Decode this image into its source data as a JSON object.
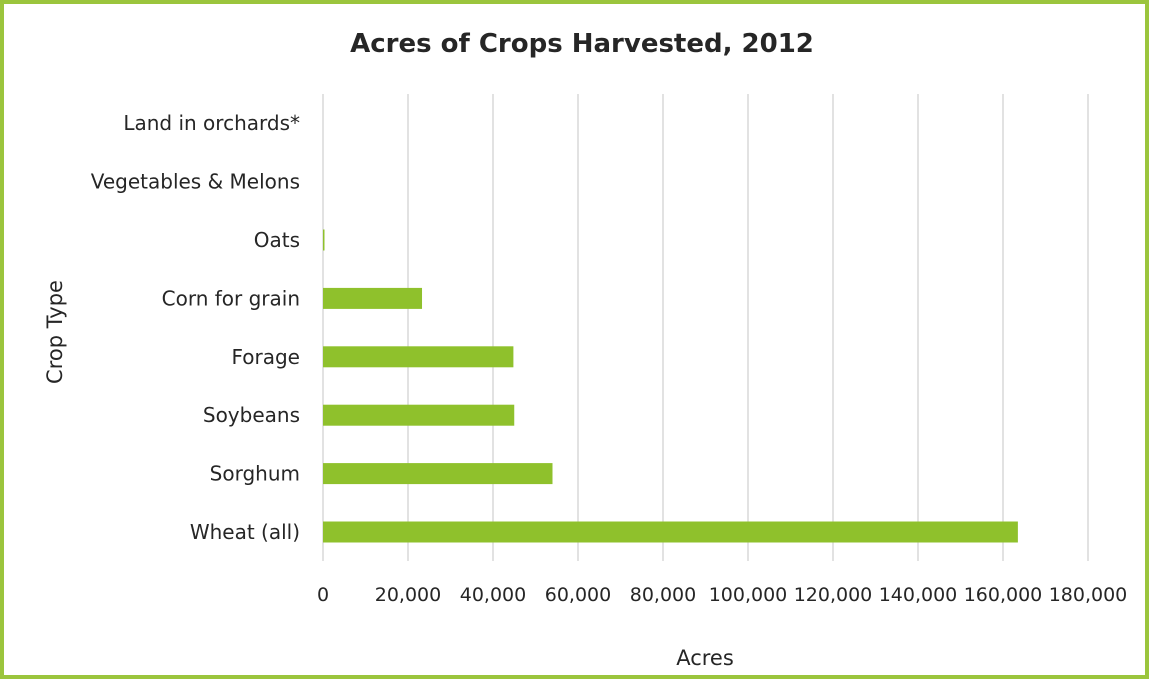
{
  "chart_data": {
    "type": "bar",
    "orientation": "horizontal",
    "title": "Acres of Crops Harvested, 2012",
    "xlabel": "Acres",
    "ylabel": "Crop Type",
    "categories": [
      "Wheat (all)",
      "Sorghum",
      "Soybeans",
      "Forage",
      "Corn for grain",
      "Oats",
      "Vegetables & Melons",
      "Land in orchards*"
    ],
    "values": [
      163500,
      54000,
      45000,
      44800,
      23300,
      350,
      0,
      0
    ],
    "xlim": [
      0,
      180000
    ],
    "xticks": [
      0,
      20000,
      40000,
      60000,
      80000,
      100000,
      120000,
      140000,
      160000,
      180000
    ],
    "xtick_labels": [
      "0",
      "20,000",
      "40,000",
      "60,000",
      "80,000",
      "100,000",
      "120,000",
      "140,000",
      "160,000",
      "180,000"
    ],
    "grid": "vertical",
    "legend": "none",
    "bar_color": "#8fc12c",
    "grid_color": "#d9d9d9",
    "border_color": "#9bc53d"
  }
}
